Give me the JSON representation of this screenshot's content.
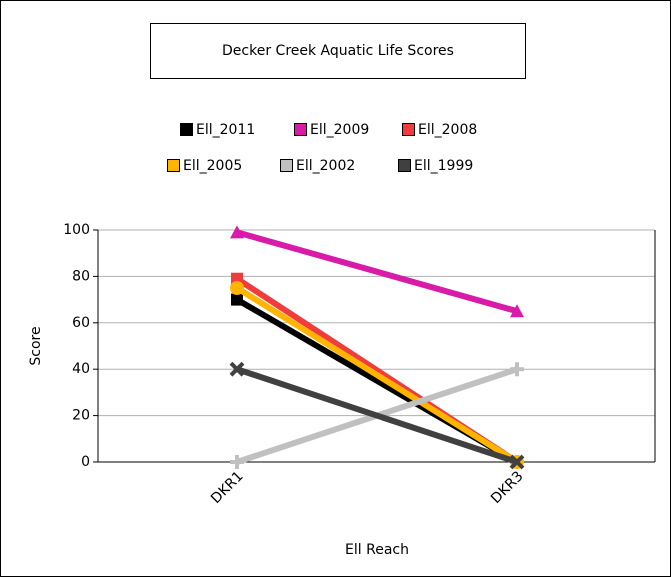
{
  "chart_data": {
    "type": "line",
    "title": "Decker Creek Aquatic Life Scores",
    "x_label": "Ell Reach",
    "y_label": "Score",
    "categories": [
      "DKR1",
      "DKR3"
    ],
    "series": [
      {
        "name": "Ell_2011",
        "color": "#000000",
        "marker": "square",
        "values": [
          70,
          0
        ]
      },
      {
        "name": "Ell_2009",
        "color": "#d81ba8",
        "marker": "triangle",
        "values": [
          99,
          65
        ]
      },
      {
        "name": "Ell_2008",
        "color": "#f03c3c",
        "marker": "square",
        "values": [
          79,
          0
        ]
      },
      {
        "name": "Ell_2005",
        "color": "#ffb400",
        "marker": "circle",
        "values": [
          75,
          0
        ]
      },
      {
        "name": "Ell_2002",
        "color": "#c0c0c0",
        "marker": "plus",
        "values": [
          0,
          40
        ]
      },
      {
        "name": "Ell_1999",
        "color": "#404040",
        "marker": "cross",
        "values": [
          40,
          0
        ]
      }
    ],
    "ylim": [
      0,
      100
    ],
    "yticks": [
      0,
      20,
      40,
      60,
      80,
      100
    ],
    "grid": true
  }
}
